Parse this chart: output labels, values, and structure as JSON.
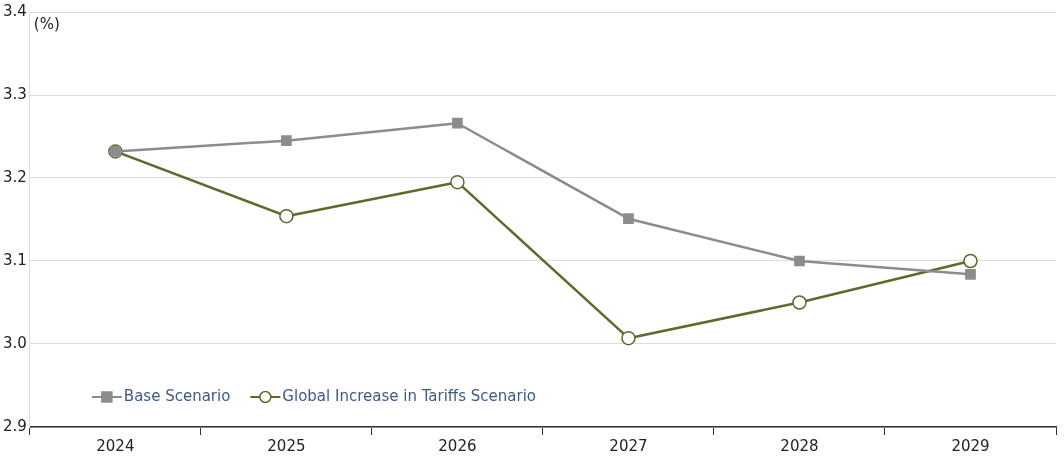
{
  "chart_data": {
    "type": "line",
    "ylabel": "(%)",
    "categories": [
      "2024",
      "2025",
      "2026",
      "2027",
      "2028",
      "2029"
    ],
    "series": [
      {
        "name": "Base Scenario",
        "color": "#8c8c8c",
        "values": [
          3.232,
          3.245,
          3.266,
          3.151,
          3.1,
          3.084
        ],
        "marker": "square"
      },
      {
        "name": "Global Increase in Tariffs Scenario",
        "color": "#5b6b2b",
        "values": [
          3.232,
          3.154,
          3.195,
          3.007,
          3.05,
          3.1
        ],
        "marker": "circle"
      }
    ],
    "ylim": [
      2.9,
      3.4
    ],
    "yticks": [
      2.9,
      {
        "value": 3,
        "label": "3.0"
      },
      3.1,
      3.2,
      3.3,
      3.4
    ],
    "grid": "y",
    "legend": "bottom left",
    "line_style": "solid"
  }
}
